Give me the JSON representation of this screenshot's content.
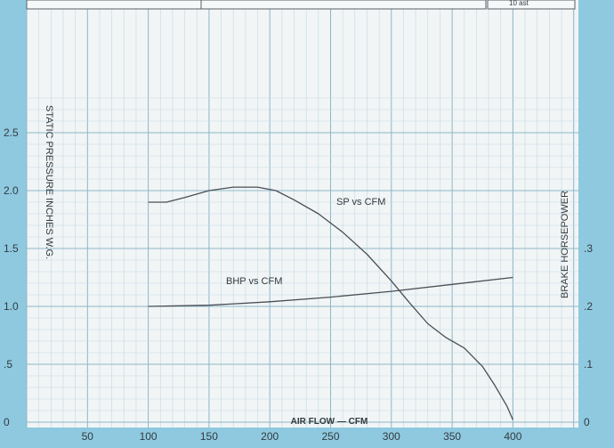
{
  "chart_data": {
    "type": "line",
    "title": "",
    "xlabel": "AIR FLOW — CFM",
    "ylabel_left": "STATIC PRESSURE INCHES W.G.",
    "ylabel_right": "BRAKE HORSEPOWER",
    "xlim": [
      0,
      450
    ],
    "ylim_left": [
      0,
      2.75
    ],
    "ylim_right": [
      0,
      0.55
    ],
    "x_ticks": [
      "50",
      "100",
      "150",
      "200",
      "250",
      "300",
      "350",
      "400"
    ],
    "y_ticks_left": [
      "0",
      ".5",
      "1.0",
      "1.5",
      "2.0",
      "2.5"
    ],
    "y_ticks_right": [
      "0",
      ".1",
      ".2",
      ".3"
    ],
    "grid": true,
    "top_text": "10 ast",
    "series": [
      {
        "name": "SP vs CFM",
        "axis": "left",
        "color": "#4a4f55",
        "x": [
          100,
          115,
          130,
          150,
          170,
          190,
          205,
          220,
          240,
          260,
          280,
          300,
          315,
          330,
          345,
          360,
          375,
          385,
          395,
          400
        ],
        "y": [
          1.9,
          1.9,
          1.94,
          2.0,
          2.03,
          2.03,
          2.0,
          1.92,
          1.8,
          1.64,
          1.45,
          1.22,
          1.03,
          0.85,
          0.73,
          0.64,
          0.48,
          0.32,
          0.14,
          0.02
        ]
      },
      {
        "name": "BHP vs CFM",
        "axis": "right",
        "color": "#4a4f55",
        "x": [
          100,
          150,
          200,
          250,
          300,
          350,
          400
        ],
        "y": [
          0.2,
          0.202,
          0.208,
          0.216,
          0.226,
          0.238,
          0.25
        ]
      }
    ]
  }
}
